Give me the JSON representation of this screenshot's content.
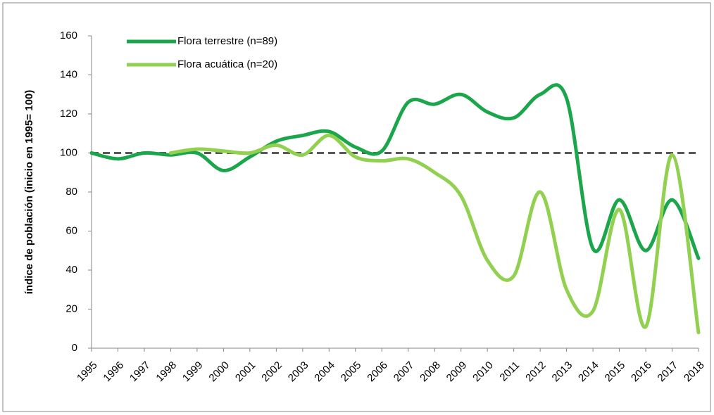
{
  "chart_data": {
    "type": "line",
    "ylabel": "índice de población  (inicio en 1995= 100)",
    "categories": [
      "1995",
      "1996",
      "1997",
      "1998",
      "1999",
      "2000",
      "2001",
      "2002",
      "2003",
      "2004",
      "2005",
      "2006",
      "2007",
      "2008",
      "2009",
      "2010",
      "2011",
      "2012",
      "2013",
      "2014",
      "2015",
      "2016",
      "2017",
      "2018"
    ],
    "series": [
      {
        "name": "Flora terrestre (n=89)",
        "color": "#1ba64b",
        "values": [
          100,
          97,
          100,
          99,
          100,
          91,
          98,
          106,
          109,
          111,
          103,
          101,
          126,
          125,
          130,
          121,
          118,
          130,
          128,
          51,
          76,
          50,
          76,
          46
        ]
      },
      {
        "name": "Flora acuática (n=20)",
        "color": "#92d050",
        "values": [
          null,
          null,
          null,
          100,
          102,
          101,
          100,
          104,
          99,
          109,
          98,
          96,
          97,
          90,
          78,
          45,
          37,
          80,
          30,
          19,
          71,
          11,
          99,
          8
        ]
      }
    ],
    "reference_line": 100,
    "ylim": [
      0,
      160
    ],
    "yticks": [
      0,
      20,
      40,
      60,
      80,
      100,
      120,
      140,
      160
    ],
    "legend": "top-left"
  }
}
